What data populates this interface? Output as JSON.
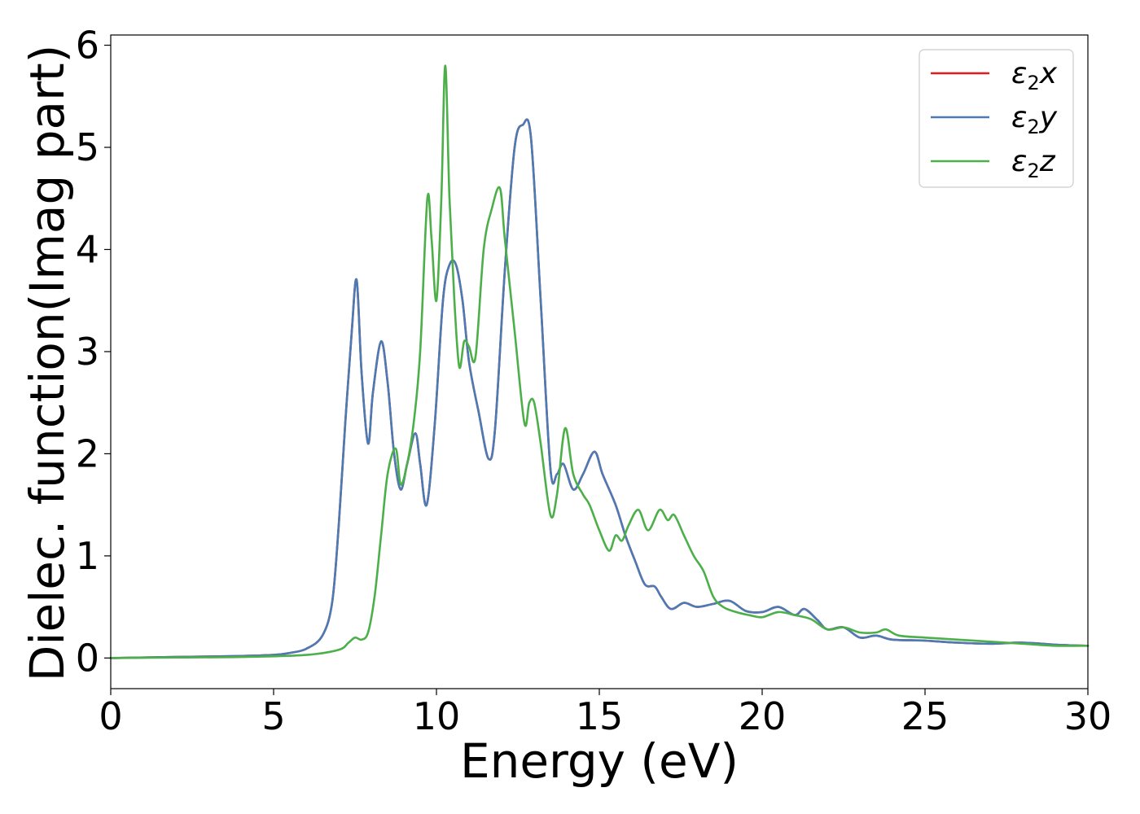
{
  "chart_data": {
    "type": "line",
    "xlabel": "Energy (eV)",
    "ylabel": "Dielec. function(Imag part)",
    "xlim": [
      0,
      30
    ],
    "ylim": [
      -0.3,
      6.1
    ],
    "xticks": [
      0,
      5,
      10,
      15,
      20,
      25,
      30
    ],
    "yticks": [
      0,
      1,
      2,
      3,
      4,
      5,
      6
    ],
    "grid": false,
    "legend_position": "top-right",
    "series": [
      {
        "name": "ε2x",
        "legend": {
          "base": "ε",
          "sub": "2",
          "axis": "x"
        },
        "color": "#e41a1c",
        "x": [
          0,
          2,
          4,
          5,
          5.5,
          6,
          6.5,
          6.8,
          7,
          7.2,
          7.4,
          7.55,
          7.7,
          7.9,
          8.05,
          8.3,
          8.5,
          8.7,
          8.9,
          9.1,
          9.35,
          9.5,
          9.7,
          9.95,
          10.2,
          10.4,
          10.6,
          10.8,
          11.0,
          11.3,
          11.6,
          11.8,
          12.1,
          12.4,
          12.65,
          12.9,
          13.2,
          13.5,
          13.7,
          13.9,
          14.2,
          14.5,
          14.85,
          15.1,
          15.5,
          15.8,
          16.1,
          16.4,
          16.7,
          16.9,
          17.2,
          17.6,
          18.0,
          18.5,
          19.0,
          19.5,
          20.0,
          20.5,
          21.0,
          21.3,
          21.7,
          22.0,
          22.5,
          23.0,
          23.5,
          24,
          25,
          26,
          27,
          28,
          29,
          30
        ],
        "y": [
          0,
          0.01,
          0.02,
          0.03,
          0.05,
          0.09,
          0.22,
          0.55,
          1.3,
          2.3,
          3.2,
          3.7,
          2.8,
          2.1,
          2.6,
          3.1,
          2.7,
          2.0,
          1.65,
          1.9,
          2.2,
          1.9,
          1.5,
          2.3,
          3.5,
          3.85,
          3.85,
          3.5,
          2.9,
          2.4,
          1.95,
          2.25,
          3.8,
          5.0,
          5.22,
          5.1,
          3.5,
          1.85,
          1.8,
          1.9,
          1.65,
          1.8,
          2.02,
          1.8,
          1.5,
          1.2,
          0.95,
          0.72,
          0.7,
          0.6,
          0.48,
          0.54,
          0.5,
          0.53,
          0.56,
          0.46,
          0.45,
          0.5,
          0.42,
          0.48,
          0.37,
          0.28,
          0.3,
          0.2,
          0.22,
          0.18,
          0.17,
          0.15,
          0.14,
          0.15,
          0.13,
          0.12
        ]
      },
      {
        "name": "ε2y",
        "legend": {
          "base": "ε",
          "sub": "2",
          "axis": "y"
        },
        "color": "#4a7bb5",
        "x": [
          0,
          2,
          4,
          5,
          5.5,
          6,
          6.5,
          6.8,
          7,
          7.2,
          7.4,
          7.55,
          7.7,
          7.9,
          8.05,
          8.3,
          8.5,
          8.7,
          8.9,
          9.1,
          9.35,
          9.5,
          9.7,
          9.95,
          10.2,
          10.4,
          10.6,
          10.8,
          11.0,
          11.3,
          11.6,
          11.8,
          12.1,
          12.4,
          12.65,
          12.9,
          13.2,
          13.5,
          13.7,
          13.9,
          14.2,
          14.5,
          14.85,
          15.1,
          15.5,
          15.8,
          16.1,
          16.4,
          16.7,
          16.9,
          17.2,
          17.6,
          18.0,
          18.5,
          19.0,
          19.5,
          20.0,
          20.5,
          21.0,
          21.3,
          21.7,
          22.0,
          22.5,
          23.0,
          23.5,
          24,
          25,
          26,
          27,
          28,
          29,
          30
        ],
        "y": [
          0,
          0.01,
          0.02,
          0.03,
          0.05,
          0.09,
          0.22,
          0.55,
          1.3,
          2.3,
          3.2,
          3.7,
          2.8,
          2.1,
          2.6,
          3.1,
          2.7,
          2.0,
          1.65,
          1.9,
          2.2,
          1.9,
          1.5,
          2.3,
          3.5,
          3.85,
          3.85,
          3.5,
          2.9,
          2.4,
          1.95,
          2.25,
          3.8,
          5.0,
          5.22,
          5.1,
          3.5,
          1.85,
          1.8,
          1.9,
          1.65,
          1.8,
          2.02,
          1.8,
          1.5,
          1.2,
          0.95,
          0.72,
          0.7,
          0.6,
          0.48,
          0.54,
          0.5,
          0.53,
          0.56,
          0.46,
          0.45,
          0.5,
          0.42,
          0.48,
          0.37,
          0.28,
          0.3,
          0.2,
          0.22,
          0.18,
          0.17,
          0.15,
          0.14,
          0.15,
          0.13,
          0.12
        ]
      },
      {
        "name": "ε2z",
        "legend": {
          "base": "ε",
          "sub": "2",
          "axis": "z"
        },
        "color": "#4daf4a",
        "x": [
          0,
          2,
          4,
          6,
          7,
          7.3,
          7.5,
          7.7,
          7.9,
          8.1,
          8.3,
          8.5,
          8.75,
          8.9,
          9.1,
          9.3,
          9.5,
          9.72,
          9.85,
          10.0,
          10.15,
          10.27,
          10.4,
          10.55,
          10.7,
          10.85,
          11.0,
          11.2,
          11.45,
          11.7,
          11.95,
          12.1,
          12.4,
          12.7,
          12.85,
          13.0,
          13.2,
          13.5,
          13.7,
          13.95,
          14.2,
          14.5,
          14.7,
          15.0,
          15.3,
          15.5,
          15.7,
          15.9,
          16.2,
          16.5,
          16.85,
          17.1,
          17.3,
          17.6,
          17.9,
          18.2,
          18.5,
          18.8,
          19.2,
          19.6,
          20.0,
          20.5,
          21.0,
          21.5,
          22.0,
          22.5,
          23.0,
          23.5,
          23.8,
          24.2,
          25,
          26,
          27,
          28,
          29,
          30
        ],
        "y": [
          0,
          0.005,
          0.01,
          0.03,
          0.08,
          0.15,
          0.2,
          0.18,
          0.25,
          0.6,
          1.2,
          1.8,
          2.05,
          1.7,
          1.9,
          2.3,
          3.0,
          4.5,
          4.1,
          3.5,
          4.5,
          5.8,
          4.5,
          3.5,
          2.85,
          3.1,
          3.05,
          2.95,
          4.0,
          4.4,
          4.6,
          4.1,
          3.2,
          2.3,
          2.5,
          2.5,
          2.1,
          1.4,
          1.6,
          2.25,
          1.8,
          1.6,
          1.5,
          1.25,
          1.05,
          1.2,
          1.15,
          1.3,
          1.45,
          1.25,
          1.45,
          1.35,
          1.4,
          1.2,
          1.0,
          0.85,
          0.6,
          0.5,
          0.45,
          0.42,
          0.4,
          0.45,
          0.42,
          0.38,
          0.28,
          0.3,
          0.25,
          0.25,
          0.28,
          0.22,
          0.2,
          0.18,
          0.16,
          0.14,
          0.12,
          0.12
        ]
      }
    ]
  }
}
